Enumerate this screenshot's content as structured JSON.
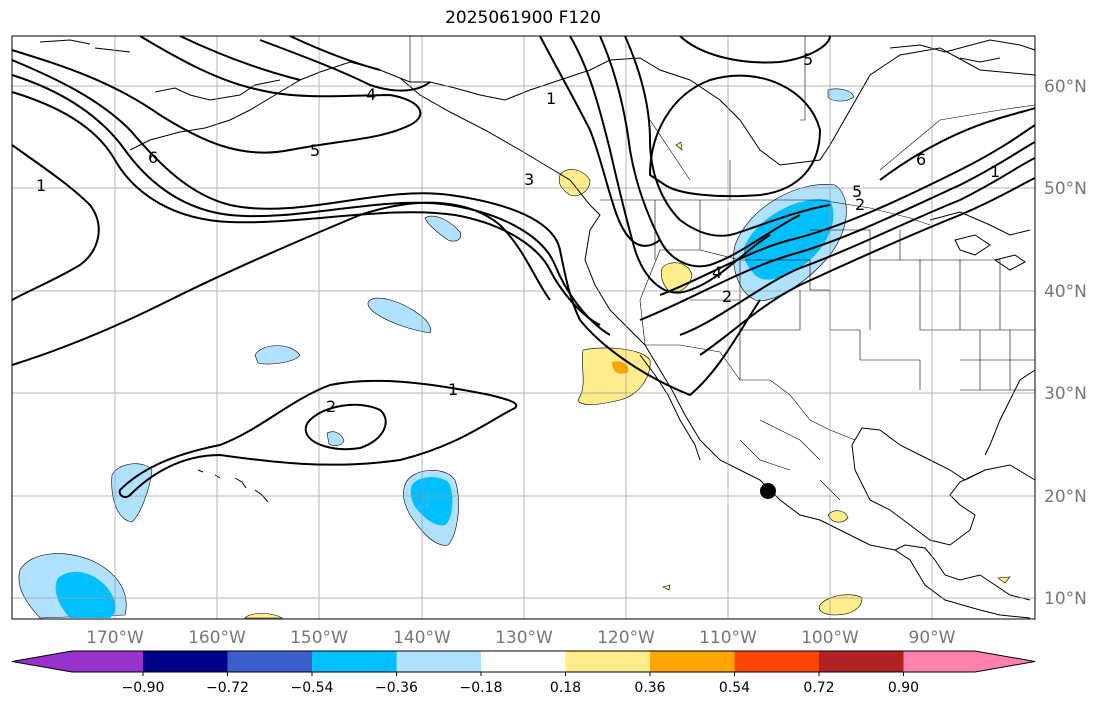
{
  "title": "2025061900 F120",
  "map": {
    "lon_labels": [
      "170°W",
      "160°W",
      "150°W",
      "140°W",
      "130°W",
      "120°W",
      "110°W",
      "100°W",
      "90°W"
    ],
    "lat_labels": [
      "60°N",
      "50°N",
      "40°N",
      "30°N",
      "20°N",
      "10°N"
    ],
    "contour_labels": [
      "1",
      "6",
      "5",
      "4",
      "3",
      "1",
      "5",
      "6",
      "1",
      "5",
      "4",
      "2",
      "2",
      "1",
      "2"
    ]
  },
  "colorbar": {
    "tick_labels": [
      "−0.90",
      "−0.72",
      "−0.54",
      "−0.36",
      "−0.18",
      "0.18",
      "0.36",
      "0.54",
      "0.72",
      "0.90"
    ],
    "colors": [
      "#9932cc",
      "#00008b",
      "#3a5fcd",
      "#00bfff",
      "#b0e2ff",
      "#ffffff",
      "#ffec8b",
      "#ffa500",
      "#ff4500",
      "#b22222",
      "#ff82ab"
    ]
  }
}
